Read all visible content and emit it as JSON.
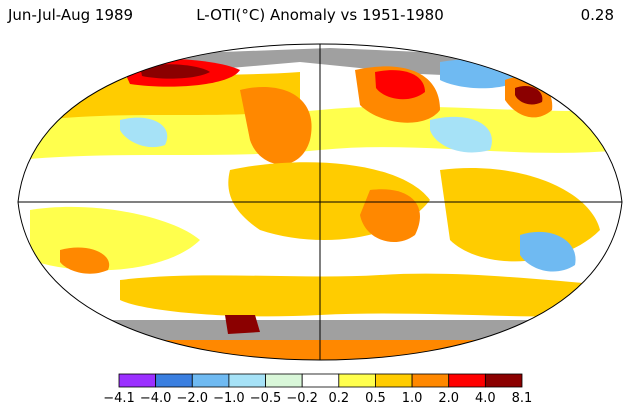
{
  "header": {
    "period": "Jun-Jul-Aug 1989",
    "title": "L-OTI(°C) Anomaly vs 1951-1980",
    "global_mean": "0.28"
  },
  "legend": {
    "ticks": [
      "−4.1",
      "−4.0",
      "−2.0",
      "−1.0",
      "−0.5",
      "−0.2",
      "0.2",
      "0.5",
      "1.0",
      "2.0",
      "4.0",
      "8.1"
    ],
    "colors": [
      "#9b30ff",
      "#3a7fe0",
      "#6fbaf2",
      "#a6e2f7",
      "#d9f7d9",
      "#ffffff",
      "#ffff4d",
      "#ffcc00",
      "#ff8800",
      "#ff0000",
      "#8b0000"
    ]
  },
  "map_colors": {
    "ocean_base": "#ffffff",
    "land_missing": "#a0a0a0",
    "warm_light": "#ffff4d",
    "warm": "#ffcc00",
    "warm_strong": "#ff8800",
    "hot": "#ff0000",
    "very_hot": "#8b0000",
    "cool_light": "#a6e2f7",
    "cool": "#6fbaf2",
    "coastline": "#000000"
  }
}
